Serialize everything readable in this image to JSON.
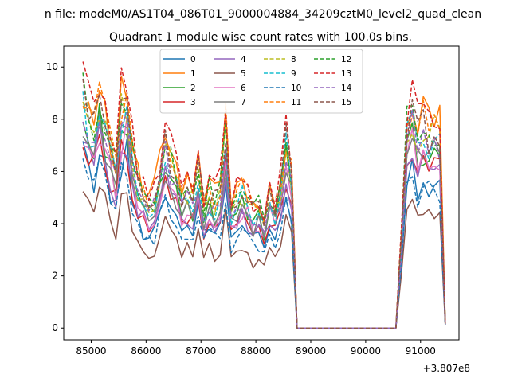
{
  "chart_data": {
    "type": "line",
    "suptitle": "n file: modeM0/AS1T04_086T01_9000004884_34209cztM0_level2_quad_clean",
    "title": "Quadrant 1 module wise count rates with 100.0s bins.",
    "xlabel": "",
    "ylabel": "",
    "x_offset_label": "+3.807e8",
    "xlim": [
      84500,
      91700
    ],
    "ylim": [
      -0.45,
      10.8
    ],
    "xticks": [
      85000,
      86000,
      87000,
      88000,
      89000,
      90000,
      91000
    ],
    "xtick_labels": [
      "85000",
      "86000",
      "87000",
      "88000",
      "89000",
      "90000",
      "91000"
    ],
    "yticks": [
      0,
      2,
      4,
      6,
      8,
      10
    ],
    "ytick_labels": [
      "0",
      "2",
      "4",
      "6",
      "8",
      "10"
    ],
    "legend": {
      "position": "top-center",
      "columns": 4,
      "labels": [
        "0",
        "1",
        "2",
        "3",
        "4",
        "5",
        "6",
        "7",
        "8",
        "9",
        "10",
        "11",
        "12",
        "13",
        "14",
        "15"
      ]
    },
    "colors": [
      "#1f77b4",
      "#ff7f0e",
      "#2ca02c",
      "#d62728",
      "#9467bd",
      "#8c564b",
      "#e377c2",
      "#7f7f7f",
      "#bcbd22",
      "#17becf",
      "#1f77b4",
      "#ff7f0e",
      "#2ca02c",
      "#d62728",
      "#9467bd",
      "#8c564b"
    ],
    "dashed": [
      false,
      false,
      false,
      false,
      false,
      false,
      false,
      false,
      true,
      true,
      true,
      true,
      true,
      true,
      true,
      true
    ],
    "x": [
      84850,
      84950,
      85050,
      85150,
      85250,
      85350,
      85450,
      85550,
      85650,
      85750,
      85850,
      85950,
      86050,
      86150,
      86250,
      86350,
      86450,
      86550,
      86650,
      86750,
      86850,
      86950,
      87050,
      87150,
      87250,
      87350,
      87450,
      87550,
      87650,
      87750,
      87850,
      87950,
      88050,
      88150,
      88250,
      88350,
      88450,
      88550,
      88650,
      88750,
      89000,
      89500,
      90000,
      90550,
      90650,
      90750,
      90850,
      90950,
      91050,
      91150,
      91250,
      91350,
      91450
    ],
    "base_profile": [
      1.0,
      0.92,
      0.86,
      1.02,
      0.93,
      0.78,
      0.7,
      0.96,
      1.0,
      0.75,
      0.62,
      0.57,
      0.55,
      0.57,
      0.68,
      0.82,
      0.72,
      0.64,
      0.57,
      0.6,
      0.58,
      0.69,
      0.53,
      0.59,
      0.55,
      0.6,
      0.87,
      0.52,
      0.56,
      0.6,
      0.57,
      0.5,
      0.53,
      0.46,
      0.58,
      0.52,
      0.61,
      0.82,
      0.66,
      0,
      0,
      0,
      0,
      0,
      0.38,
      0.87,
      0.95,
      0.82,
      0.89,
      0.84,
      0.87,
      0.85,
      0.02
    ],
    "series": [
      {
        "name": "0",
        "scale": 6.6
      },
      {
        "name": "1",
        "scale": 9.3
      },
      {
        "name": "2",
        "scale": 7.8
      },
      {
        "name": "3",
        "scale": 7.1
      },
      {
        "name": "4",
        "scale": 7.2
      },
      {
        "name": "5",
        "scale": 5.1
      },
      {
        "name": "6",
        "scale": 7.5
      },
      {
        "name": "7",
        "scale": 7.6
      },
      {
        "name": "8",
        "scale": 8.6
      },
      {
        "name": "9",
        "scale": 8.3
      },
      {
        "name": "10",
        "scale": 6.1
      },
      {
        "name": "11",
        "scale": 9.0
      },
      {
        "name": "12",
        "scale": 8.9
      },
      {
        "name": "13",
        "scale": 9.6
      },
      {
        "name": "14",
        "scale": 8.0
      },
      {
        "name": "15",
        "scale": 8.8
      }
    ]
  }
}
